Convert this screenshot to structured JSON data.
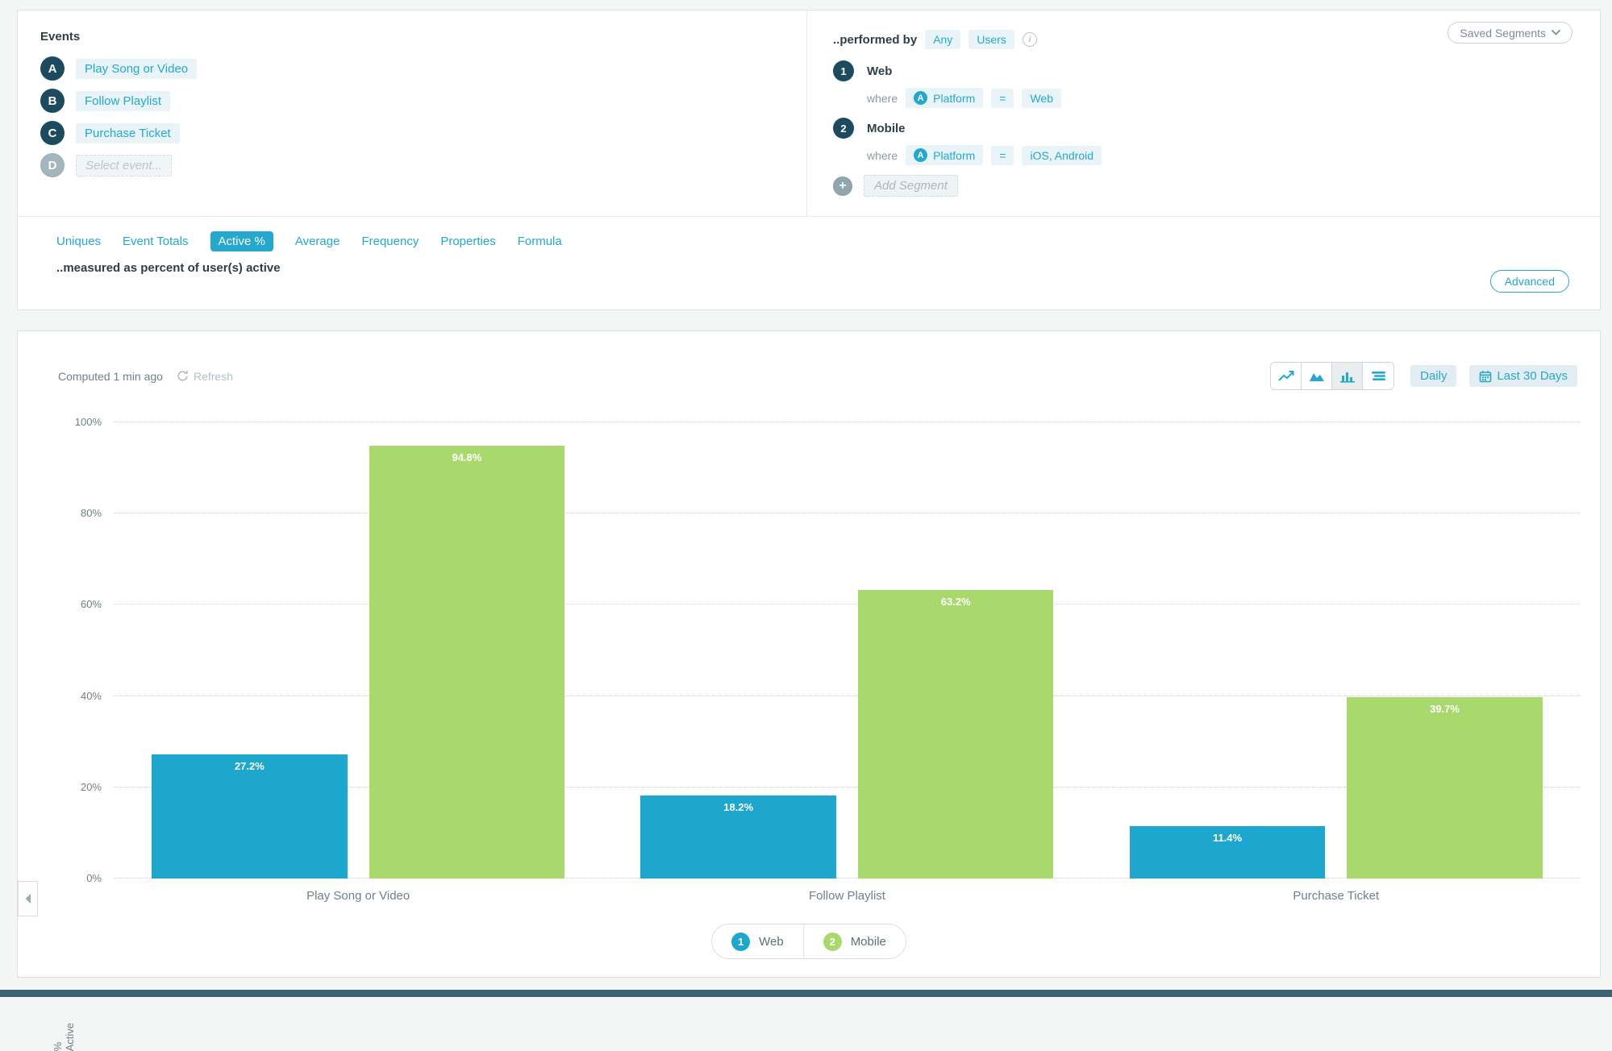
{
  "colors": {
    "accent_teal": "#24a8ce",
    "dark_navy": "#1c4a5e",
    "bar_web": "#1ea7ce",
    "bar_mobile": "#a9d96d",
    "chip_bg": "#e9f4f9",
    "muted_text": "#8a9aa1",
    "bottom_strip": "#3b6372"
  },
  "icons": {
    "info": "info-circle",
    "plus": "plus-circle",
    "refresh": "circular-arrow",
    "chevron_down": "chevron-down",
    "calendar": "calendar",
    "chart_types": [
      "line-chart",
      "area-chart",
      "bar-chart",
      "horizontal-bar-chart"
    ],
    "collapse": "left-triangle",
    "profile_property": "letter-a-circle"
  },
  "events_panel": {
    "title": "Events",
    "rows": [
      {
        "letter": "A",
        "label": "Play Song or Video",
        "placeholder": false
      },
      {
        "letter": "B",
        "label": "Follow Playlist",
        "placeholder": false
      },
      {
        "letter": "C",
        "label": "Purchase Ticket",
        "placeholder": false
      },
      {
        "letter": "D",
        "label": "Select event...",
        "placeholder": true
      }
    ]
  },
  "segments_panel": {
    "prefix": "..performed by",
    "any_label": "Any",
    "users_label": "Users",
    "saved_segments_label": "Saved Segments",
    "segments": [
      {
        "number": "1",
        "name": "Web",
        "where_label": "where",
        "property": "Platform",
        "operator": "=",
        "value": "Web"
      },
      {
        "number": "2",
        "name": "Mobile",
        "where_label": "where",
        "property": "Platform",
        "operator": "=",
        "value": "iOS, Android"
      }
    ],
    "add_segment_label": "Add Segment"
  },
  "measure_tabs": {
    "tabs": [
      {
        "label": "Uniques"
      },
      {
        "label": "Event Totals"
      },
      {
        "label": "Active %"
      },
      {
        "label": "Average"
      },
      {
        "label": "Frequency"
      },
      {
        "label": "Properties"
      },
      {
        "label": "Formula"
      }
    ],
    "active_tab": "Active %",
    "description": "..measured as percent of user(s) active",
    "advanced_label": "Advanced"
  },
  "chart_header": {
    "computed_label": "Computed 1 min ago",
    "refresh_label": "Refresh",
    "selected_chart_type": "bar-chart",
    "daily_label": "Daily",
    "date_range_label": "Last 30 Days"
  },
  "chart_data": {
    "type": "bar",
    "categories": [
      "Play Song or Video",
      "Follow Playlist",
      "Purchase Ticket"
    ],
    "series": [
      {
        "name": "Web",
        "color": "#1ea7ce",
        "values": [
          27.2,
          18.2,
          11.4
        ]
      },
      {
        "name": "Mobile",
        "color": "#a9d96d",
        "values": [
          94.8,
          63.2,
          39.7
        ]
      }
    ],
    "value_labels": [
      [
        "27.2%",
        "94.8%"
      ],
      [
        "18.2%",
        "63.2%"
      ],
      [
        "11.4%",
        "39.7%"
      ]
    ],
    "title": "",
    "xlabel": "",
    "ylabel": "% Active",
    "ylim": [
      0,
      100
    ],
    "yticks": [
      "100%",
      "80%",
      "60%",
      "40%",
      "20%",
      "0%"
    ],
    "grid": true,
    "legend_position": "bottom",
    "legend": [
      {
        "number": "1",
        "label": "Web"
      },
      {
        "number": "2",
        "label": "Mobile"
      }
    ]
  }
}
